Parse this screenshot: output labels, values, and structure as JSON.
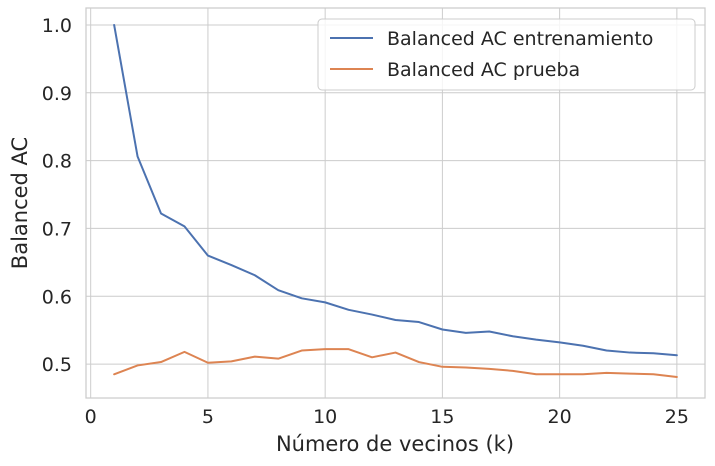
{
  "chart_data": {
    "type": "line",
    "xlabel": "Número de vecinos (k)",
    "ylabel": "Balanced AC",
    "xlim": [
      -0.2,
      26.2
    ],
    "ylim": [
      0.45,
      1.025
    ],
    "xticks": [
      0,
      5,
      10,
      15,
      20,
      25
    ],
    "yticks": [
      0.5,
      0.6,
      0.7,
      0.8,
      0.9,
      1.0
    ],
    "xtick_labels": [
      "0",
      "5",
      "10",
      "15",
      "20",
      "25"
    ],
    "ytick_labels": [
      "0.5",
      "0.6",
      "0.7",
      "0.8",
      "0.9",
      "1.0"
    ],
    "grid": true,
    "legend_position": "top-right",
    "x": [
      1,
      2,
      3,
      4,
      5,
      6,
      7,
      8,
      9,
      10,
      11,
      12,
      13,
      14,
      15,
      16,
      17,
      18,
      19,
      20,
      21,
      22,
      23,
      24,
      25
    ],
    "series": [
      {
        "name": "Balanced AC entrenamiento",
        "color": "#4c72b0",
        "values": [
          1.0,
          0.806,
          0.722,
          0.703,
          0.66,
          0.646,
          0.631,
          0.609,
          0.597,
          0.591,
          0.58,
          0.573,
          0.565,
          0.562,
          0.551,
          0.546,
          0.548,
          0.541,
          0.536,
          0.532,
          0.527,
          0.52,
          0.517,
          0.516,
          0.513
        ]
      },
      {
        "name": "Balanced AC prueba",
        "color": "#dd8452",
        "values": [
          0.485,
          0.498,
          0.503,
          0.518,
          0.502,
          0.504,
          0.511,
          0.508,
          0.52,
          0.522,
          0.522,
          0.51,
          0.517,
          0.503,
          0.496,
          0.495,
          0.493,
          0.49,
          0.485,
          0.485,
          0.485,
          0.487,
          0.486,
          0.485,
          0.481
        ]
      }
    ]
  }
}
